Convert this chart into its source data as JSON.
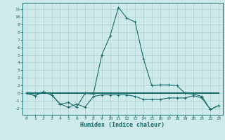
{
  "xlabel": "Humidex (Indice chaleur)",
  "background_color": "#ceeaea",
  "grid_color": "#aacfcf",
  "line_color": "#1a6b6b",
  "x_values": [
    0,
    1,
    2,
    3,
    4,
    5,
    6,
    7,
    8,
    9,
    10,
    11,
    12,
    13,
    14,
    15,
    16,
    17,
    18,
    19,
    20,
    21,
    22,
    23
  ],
  "line1": [
    0.0,
    -0.3,
    0.2,
    -0.2,
    -1.4,
    -1.2,
    -1.8,
    0.0,
    -0.1,
    5.0,
    7.5,
    11.2,
    9.8,
    9.3,
    4.5,
    1.0,
    1.1,
    1.1,
    1.0,
    0.0,
    -0.1,
    -0.4,
    -2.1,
    -1.6
  ],
  "line2": [
    0.0,
    -0.3,
    0.2,
    -0.2,
    -1.4,
    -1.8,
    -1.4,
    -1.8,
    -0.4,
    -0.2,
    -0.2,
    -0.2,
    -0.2,
    -0.4,
    -0.8,
    -0.8,
    -0.8,
    -0.6,
    -0.6,
    -0.6,
    -0.3,
    -0.6,
    -2.1,
    -1.6
  ],
  "line3_x": [
    0,
    23
  ],
  "line3_y": [
    0.0,
    0.0
  ],
  "ylim": [
    -2.8,
    11.8
  ],
  "xlim": [
    -0.5,
    23.5
  ],
  "yticks": [
    -2,
    -1,
    0,
    1,
    2,
    3,
    4,
    5,
    6,
    7,
    8,
    9,
    10,
    11
  ],
  "xticks": [
    0,
    1,
    2,
    3,
    4,
    5,
    6,
    7,
    8,
    9,
    10,
    11,
    12,
    13,
    14,
    15,
    16,
    17,
    18,
    19,
    20,
    21,
    22,
    23
  ]
}
